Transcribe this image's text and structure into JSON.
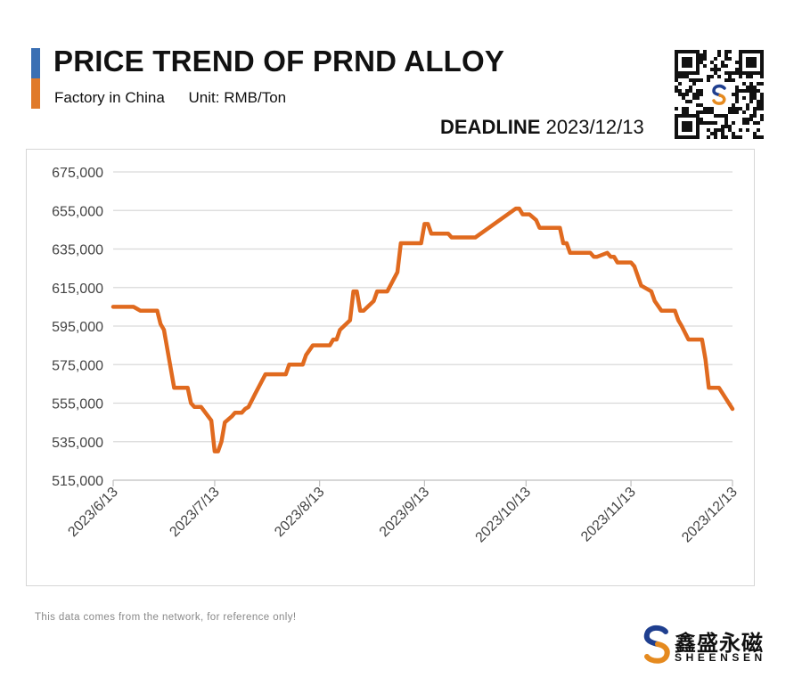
{
  "header": {
    "title": "PRICE TREND OF PRND ALLOY",
    "factory": "Factory in China",
    "unit": "Unit: RMB/Ton",
    "deadline_label": "DEADLINE",
    "deadline_date": "2023/12/13"
  },
  "colors": {
    "accent_blue": "#3a6fb3",
    "accent_orange": "#e07a2a",
    "line": "#e06a1f",
    "grid": "#d9d9d9"
  },
  "footer": {
    "note": "This data comes from the network, for reference only!",
    "brand_cn": "鑫盛永磁",
    "brand_en": "SHEENSEN"
  },
  "icons": {
    "qr": "qr-code-icon",
    "logo": "sheensen-logo-icon"
  },
  "chart_data": {
    "type": "line",
    "title": "PRICE TREND OF PRND ALLOY",
    "xlabel": "",
    "ylabel": "",
    "ylim": [
      515000,
      675000
    ],
    "yticks": [
      515000,
      535000,
      555000,
      575000,
      595000,
      615000,
      635000,
      655000,
      675000
    ],
    "ytick_labels": [
      "515,000",
      "535,000",
      "555,000",
      "575,000",
      "595,000",
      "615,000",
      "635,000",
      "655,000",
      "675,000"
    ],
    "xlim": [
      "2023-06-13",
      "2023-12-13"
    ],
    "xticks": [
      "2023-06-13",
      "2023-07-13",
      "2023-08-13",
      "2023-09-13",
      "2023-10-13",
      "2023-11-13",
      "2023-12-13"
    ],
    "xtick_labels": [
      "2023/6/13",
      "2023/7/13",
      "2023/8/13",
      "2023/9/13",
      "2023/10/13",
      "2023/11/13",
      "2023/12/13"
    ],
    "grid": "horizontal",
    "legend": "none",
    "series": [
      {
        "points": [
          [
            "2023-06-13",
            605000
          ],
          [
            "2023-06-19",
            605000
          ],
          [
            "2023-06-20",
            604000
          ],
          [
            "2023-06-21",
            603000
          ],
          [
            "2023-06-26",
            603000
          ],
          [
            "2023-06-27",
            596000
          ],
          [
            "2023-06-28",
            593000
          ],
          [
            "2023-07-01",
            563000
          ],
          [
            "2023-07-05",
            563000
          ],
          [
            "2023-07-06",
            555000
          ],
          [
            "2023-07-07",
            553000
          ],
          [
            "2023-07-09",
            553000
          ],
          [
            "2023-07-12",
            546000
          ],
          [
            "2023-07-13",
            530000
          ],
          [
            "2023-07-14",
            530000
          ],
          [
            "2023-07-15",
            535000
          ],
          [
            "2023-07-16",
            545000
          ],
          [
            "2023-07-18",
            548000
          ],
          [
            "2023-07-19",
            550000
          ],
          [
            "2023-07-21",
            550000
          ],
          [
            "2023-07-22",
            552000
          ],
          [
            "2023-07-23",
            553000
          ],
          [
            "2023-07-25",
            560000
          ],
          [
            "2023-07-28",
            570000
          ],
          [
            "2023-08-03",
            570000
          ],
          [
            "2023-08-04",
            575000
          ],
          [
            "2023-08-08",
            575000
          ],
          [
            "2023-08-09",
            580000
          ],
          [
            "2023-08-11",
            585000
          ],
          [
            "2023-08-16",
            585000
          ],
          [
            "2023-08-17",
            588000
          ],
          [
            "2023-08-18",
            588000
          ],
          [
            "2023-08-19",
            593000
          ],
          [
            "2023-08-22",
            598000
          ],
          [
            "2023-08-23",
            613000
          ],
          [
            "2023-08-24",
            613000
          ],
          [
            "2023-08-25",
            603000
          ],
          [
            "2023-08-26",
            603000
          ],
          [
            "2023-08-29",
            608000
          ],
          [
            "2023-08-30",
            613000
          ],
          [
            "2023-09-02",
            613000
          ],
          [
            "2023-09-05",
            623000
          ],
          [
            "2023-09-06",
            638000
          ],
          [
            "2023-09-12",
            638000
          ],
          [
            "2023-09-13",
            648000
          ],
          [
            "2023-09-14",
            648000
          ],
          [
            "2023-09-15",
            643000
          ],
          [
            "2023-09-20",
            643000
          ],
          [
            "2023-09-21",
            641000
          ],
          [
            "2023-09-28",
            641000
          ],
          [
            "2023-10-10",
            656000
          ],
          [
            "2023-10-11",
            656000
          ],
          [
            "2023-10-12",
            653000
          ],
          [
            "2023-10-14",
            653000
          ],
          [
            "2023-10-16",
            650000
          ],
          [
            "2023-10-17",
            646000
          ],
          [
            "2023-10-23",
            646000
          ],
          [
            "2023-10-24",
            638000
          ],
          [
            "2023-10-25",
            638000
          ],
          [
            "2023-10-26",
            633000
          ],
          [
            "2023-11-01",
            633000
          ],
          [
            "2023-11-02",
            631000
          ],
          [
            "2023-11-03",
            631000
          ],
          [
            "2023-11-06",
            633000
          ],
          [
            "2023-11-07",
            631000
          ],
          [
            "2023-11-08",
            631000
          ],
          [
            "2023-11-09",
            628000
          ],
          [
            "2023-11-13",
            628000
          ],
          [
            "2023-11-14",
            626000
          ],
          [
            "2023-11-16",
            616000
          ],
          [
            "2023-11-19",
            613000
          ],
          [
            "2023-11-20",
            608000
          ],
          [
            "2023-11-22",
            603000
          ],
          [
            "2023-11-26",
            603000
          ],
          [
            "2023-11-27",
            598000
          ],
          [
            "2023-11-28",
            595000
          ],
          [
            "2023-11-30",
            588000
          ],
          [
            "2023-12-04",
            588000
          ],
          [
            "2023-12-05",
            578000
          ],
          [
            "2023-12-06",
            563000
          ],
          [
            "2023-12-09",
            563000
          ],
          [
            "2023-12-13",
            552000
          ]
        ]
      }
    ]
  }
}
